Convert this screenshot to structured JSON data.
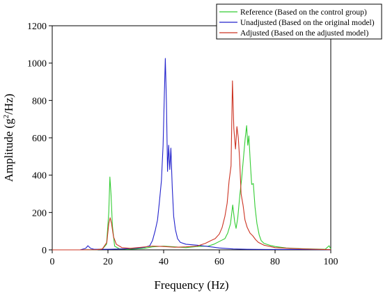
{
  "chart_data": {
    "type": "line",
    "xlabel": "Frequency (Hz)",
    "ylabel_parts": {
      "before": "Amplitude (g",
      "sup": "2",
      "after": "/Hz)"
    },
    "xlim": [
      0,
      100
    ],
    "ylim": [
      0,
      1200
    ],
    "x_ticks": [
      0,
      20,
      40,
      60,
      80,
      100
    ],
    "y_ticks": [
      0,
      200,
      400,
      600,
      800,
      1000,
      1200
    ],
    "grid": false,
    "legend_position": "top-right",
    "series": [
      {
        "name": "Reference (Based on the control group)",
        "color": "#33cc33",
        "points": [
          [
            0,
            0
          ],
          [
            10,
            0
          ],
          [
            16,
            1
          ],
          [
            18,
            4
          ],
          [
            19.5,
            30
          ],
          [
            20.3,
            200
          ],
          [
            20.7,
            390
          ],
          [
            21.1,
            300
          ],
          [
            21.6,
            130
          ],
          [
            22.4,
            20
          ],
          [
            24,
            6
          ],
          [
            27,
            3
          ],
          [
            30,
            5
          ],
          [
            33,
            8
          ],
          [
            36,
            16
          ],
          [
            40,
            20
          ],
          [
            44,
            16
          ],
          [
            48,
            12
          ],
          [
            52,
            18
          ],
          [
            56,
            20
          ],
          [
            58,
            30
          ],
          [
            60,
            45
          ],
          [
            62,
            60
          ],
          [
            63,
            90
          ],
          [
            64,
            140
          ],
          [
            64.8,
            240
          ],
          [
            65.5,
            150
          ],
          [
            66,
            115
          ],
          [
            66.6,
            170
          ],
          [
            67.4,
            300
          ],
          [
            68,
            380
          ],
          [
            68.7,
            500
          ],
          [
            69.3,
            600
          ],
          [
            69.8,
            665
          ],
          [
            70.2,
            560
          ],
          [
            70.6,
            610
          ],
          [
            71.1,
            470
          ],
          [
            71.6,
            350
          ],
          [
            72.2,
            355
          ],
          [
            72.8,
            230
          ],
          [
            73.5,
            140
          ],
          [
            74.3,
            80
          ],
          [
            75,
            50
          ],
          [
            76,
            35
          ],
          [
            78,
            25
          ],
          [
            80,
            18
          ],
          [
            84,
            10
          ],
          [
            90,
            6
          ],
          [
            95,
            4
          ],
          [
            98,
            3
          ],
          [
            99.4,
            22
          ],
          [
            100,
            5
          ]
        ]
      },
      {
        "name": "Unadjusted (Based on the original model)",
        "color": "#2222cc",
        "points": [
          [
            0,
            0
          ],
          [
            10,
            0
          ],
          [
            12,
            8
          ],
          [
            12.8,
            22
          ],
          [
            13.8,
            8
          ],
          [
            15,
            3
          ],
          [
            20,
            3
          ],
          [
            25,
            5
          ],
          [
            30,
            8
          ],
          [
            33,
            13
          ],
          [
            35,
            22
          ],
          [
            36,
            50
          ],
          [
            37,
            105
          ],
          [
            37.8,
            160
          ],
          [
            38.5,
            260
          ],
          [
            39.2,
            370
          ],
          [
            39.8,
            560
          ],
          [
            40.2,
            800
          ],
          [
            40.6,
            1025
          ],
          [
            41,
            790
          ],
          [
            41.4,
            420
          ],
          [
            41.8,
            560
          ],
          [
            42.2,
            430
          ],
          [
            42.6,
            545
          ],
          [
            43.1,
            330
          ],
          [
            43.6,
            180
          ],
          [
            44.2,
            110
          ],
          [
            45,
            60
          ],
          [
            46,
            40
          ],
          [
            48,
            30
          ],
          [
            52,
            25
          ],
          [
            56,
            18
          ],
          [
            60,
            10
          ],
          [
            65,
            5
          ],
          [
            70,
            3
          ],
          [
            80,
            2
          ],
          [
            90,
            2
          ],
          [
            100,
            1
          ]
        ]
      },
      {
        "name": "Adjusted (Based on the adjusted model)",
        "color": "#cc3322",
        "points": [
          [
            0,
            0
          ],
          [
            10,
            0
          ],
          [
            16,
            1
          ],
          [
            18,
            5
          ],
          [
            19.6,
            40
          ],
          [
            20.3,
            140
          ],
          [
            20.8,
            172
          ],
          [
            21.3,
            140
          ],
          [
            22,
            70
          ],
          [
            23,
            30
          ],
          [
            25,
            12
          ],
          [
            28,
            8
          ],
          [
            32,
            14
          ],
          [
            36,
            20
          ],
          [
            40,
            18
          ],
          [
            44,
            14
          ],
          [
            48,
            16
          ],
          [
            52,
            20
          ],
          [
            55,
            35
          ],
          [
            57,
            50
          ],
          [
            58.5,
            60
          ],
          [
            60,
            85
          ],
          [
            61,
            120
          ],
          [
            62,
            180
          ],
          [
            62.8,
            250
          ],
          [
            63.5,
            370
          ],
          [
            64.2,
            450
          ],
          [
            64.7,
            905
          ],
          [
            65.2,
            650
          ],
          [
            65.8,
            540
          ],
          [
            66.3,
            660
          ],
          [
            66.8,
            600
          ],
          [
            67.3,
            480
          ],
          [
            67.8,
            300
          ],
          [
            68.5,
            240
          ],
          [
            69.2,
            160
          ],
          [
            70,
            120
          ],
          [
            71,
            90
          ],
          [
            72,
            75
          ],
          [
            73,
            55
          ],
          [
            74,
            40
          ],
          [
            76,
            25
          ],
          [
            80,
            12
          ],
          [
            85,
            8
          ],
          [
            90,
            5
          ],
          [
            95,
            3
          ],
          [
            100,
            1
          ]
        ]
      }
    ]
  }
}
